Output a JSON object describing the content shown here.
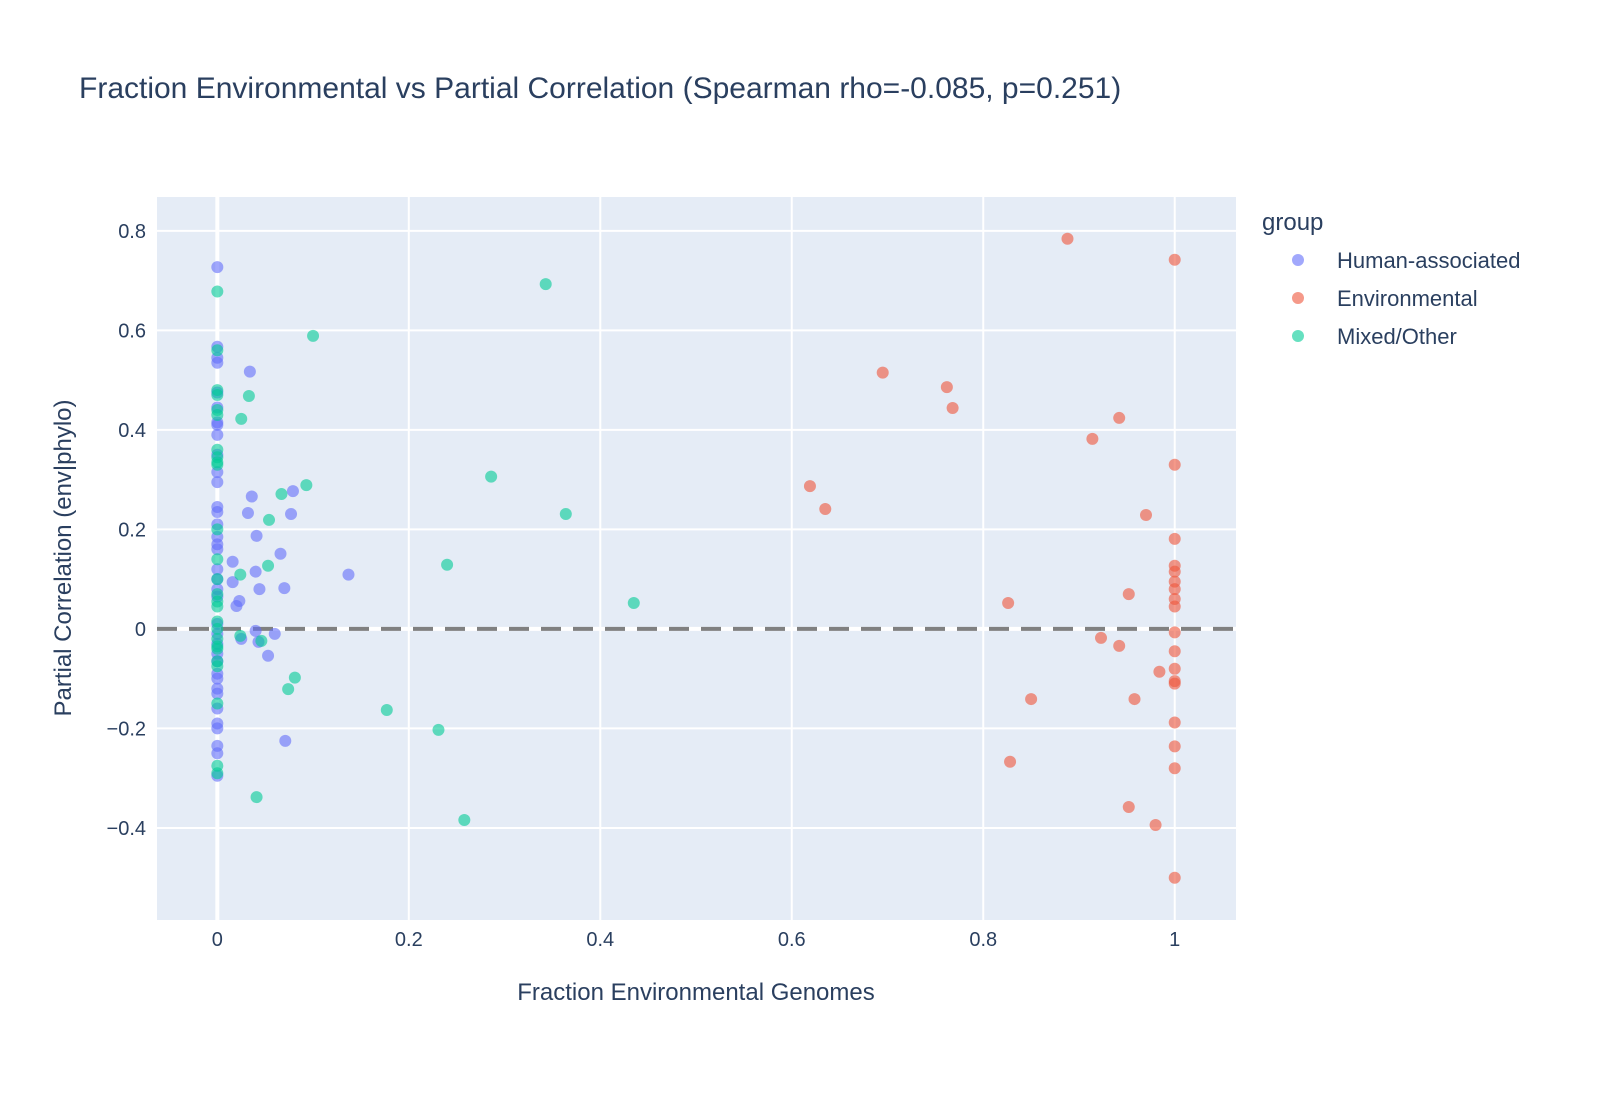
{
  "chart_data": {
    "type": "scatter",
    "title": "Fraction Environmental vs Partial Correlation (Spearman rho=-0.085, p=0.251)",
    "xlabel": "Fraction Environmental Genomes",
    "ylabel": "Partial Correlation (env|phylo)",
    "xlim": [
      -0.063,
      1.064
    ],
    "ylim": [
      -0.585,
      0.868
    ],
    "xticks": [
      0,
      0.2,
      0.4,
      0.6,
      0.8,
      1
    ],
    "xtick_labels": [
      "0",
      "0.2",
      "0.4",
      "0.6",
      "0.8",
      "1"
    ],
    "yticks": [
      -0.4,
      -0.2,
      0,
      0.2,
      0.4,
      0.6,
      0.8
    ],
    "ytick_labels": [
      "−0.4",
      "−0.2",
      "0",
      "0.2",
      "0.4",
      "0.6",
      "0.8"
    ],
    "grid": true,
    "reference_line": {
      "y": 0,
      "style": "dashed",
      "color": "#808080"
    },
    "legend": {
      "title": "group",
      "placement": "top-right"
    },
    "series": [
      {
        "name": "Human-associated",
        "color": "#636efa",
        "points": [
          [
            0,
            0.727
          ],
          [
            0,
            0.567
          ],
          [
            0,
            0.545
          ],
          [
            0,
            0.535
          ],
          [
            0,
            0.475
          ],
          [
            0,
            0.445
          ],
          [
            0,
            0.415
          ],
          [
            0,
            0.41
          ],
          [
            0,
            0.39
          ],
          [
            0,
            0.35
          ],
          [
            0,
            0.315
          ],
          [
            0,
            0.295
          ],
          [
            0,
            0.245
          ],
          [
            0,
            0.235
          ],
          [
            0,
            0.21
          ],
          [
            0,
            0.185
          ],
          [
            0,
            0.17
          ],
          [
            0,
            0.16
          ],
          [
            0,
            0.12
          ],
          [
            0,
            0.1
          ],
          [
            0,
            0.08
          ],
          [
            0,
            0.065
          ],
          [
            0,
            0.01
          ],
          [
            0,
            -0.01
          ],
          [
            0,
            -0.03
          ],
          [
            0,
            -0.05
          ],
          [
            0,
            -0.065
          ],
          [
            0,
            -0.09
          ],
          [
            0,
            -0.1
          ],
          [
            0,
            -0.12
          ],
          [
            0,
            -0.13
          ],
          [
            0,
            -0.16
          ],
          [
            0,
            -0.19
          ],
          [
            0,
            -0.2
          ],
          [
            0,
            -0.235
          ],
          [
            0,
            -0.25
          ],
          [
            0,
            -0.295
          ],
          [
            0.034,
            0.517
          ],
          [
            0.036,
            0.266
          ],
          [
            0.079,
            0.277
          ],
          [
            0.032,
            0.233
          ],
          [
            0.077,
            0.231
          ],
          [
            0.041,
            0.187
          ],
          [
            0.066,
            0.151
          ],
          [
            0.016,
            0.135
          ],
          [
            0.04,
            0.115
          ],
          [
            0.016,
            0.094
          ],
          [
            0.044,
            0.08
          ],
          [
            0.07,
            0.082
          ],
          [
            0.023,
            0.056
          ],
          [
            0.02,
            0.046
          ],
          [
            0.137,
            0.109
          ],
          [
            0.04,
            -0.004
          ],
          [
            0.06,
            -0.01
          ],
          [
            0.025,
            -0.02
          ],
          [
            0.043,
            -0.026
          ],
          [
            0.053,
            -0.054
          ],
          [
            0.071,
            -0.225
          ]
        ]
      },
      {
        "name": "Environmental",
        "color": "#EF553B",
        "points": [
          [
            0.888,
            0.784
          ],
          [
            1,
            0.742
          ],
          [
            0.695,
            0.515
          ],
          [
            0.762,
            0.486
          ],
          [
            0.768,
            0.444
          ],
          [
            0.942,
            0.424
          ],
          [
            0.914,
            0.382
          ],
          [
            1,
            0.33
          ],
          [
            0.619,
            0.287
          ],
          [
            0.635,
            0.241
          ],
          [
            0.97,
            0.229
          ],
          [
            1,
            0.181
          ],
          [
            1,
            0.127
          ],
          [
            1,
            0.115
          ],
          [
            1,
            0.095
          ],
          [
            1,
            0.08
          ],
          [
            1,
            0.06
          ],
          [
            1,
            0.045
          ],
          [
            1,
            -0.007
          ],
          [
            1,
            -0.045
          ],
          [
            1,
            -0.08
          ],
          [
            1,
            -0.105
          ],
          [
            1,
            -0.11
          ],
          [
            1,
            -0.188
          ],
          [
            1,
            -0.236
          ],
          [
            1,
            -0.28
          ],
          [
            1,
            -0.5
          ],
          [
            0.952,
            0.07
          ],
          [
            0.826,
            0.052
          ],
          [
            0.923,
            -0.018
          ],
          [
            0.942,
            -0.034
          ],
          [
            0.984,
            -0.086
          ],
          [
            0.85,
            -0.141
          ],
          [
            0.958,
            -0.141
          ],
          [
            0.828,
            -0.267
          ],
          [
            0.952,
            -0.358
          ],
          [
            0.98,
            -0.394
          ]
        ]
      },
      {
        "name": "Mixed/Other",
        "color": "#00cc96",
        "points": [
          [
            0,
            0.678
          ],
          [
            0,
            0.56
          ],
          [
            0,
            0.48
          ],
          [
            0,
            0.47
          ],
          [
            0,
            0.44
          ],
          [
            0,
            0.43
          ],
          [
            0,
            0.36
          ],
          [
            0,
            0.345
          ],
          [
            0,
            0.335
          ],
          [
            0,
            0.33
          ],
          [
            0,
            0.2
          ],
          [
            0,
            0.14
          ],
          [
            0,
            0.1
          ],
          [
            0,
            0.07
          ],
          [
            0,
            0.055
          ],
          [
            0,
            0.045
          ],
          [
            0,
            0.015
          ],
          [
            0,
            0.0
          ],
          [
            0,
            -0.02
          ],
          [
            0,
            -0.035
          ],
          [
            0,
            -0.04
          ],
          [
            0,
            -0.065
          ],
          [
            0,
            -0.075
          ],
          [
            0,
            -0.15
          ],
          [
            0,
            -0.275
          ],
          [
            0,
            -0.29
          ],
          [
            0.343,
            0.693
          ],
          [
            0.1,
            0.589
          ],
          [
            0.033,
            0.468
          ],
          [
            0.025,
            0.422
          ],
          [
            0.286,
            0.306
          ],
          [
            0.093,
            0.289
          ],
          [
            0.067,
            0.271
          ],
          [
            0.054,
            0.219
          ],
          [
            0.364,
            0.231
          ],
          [
            0.053,
            0.127
          ],
          [
            0.24,
            0.129
          ],
          [
            0.024,
            0.109
          ],
          [
            0.435,
            0.052
          ],
          [
            0.024,
            -0.014
          ],
          [
            0.046,
            -0.024
          ],
          [
            0.081,
            -0.098
          ],
          [
            0.074,
            -0.121
          ],
          [
            0.177,
            -0.163
          ],
          [
            0.231,
            -0.203
          ],
          [
            0.041,
            -0.338
          ],
          [
            0.258,
            -0.384
          ]
        ]
      }
    ]
  }
}
